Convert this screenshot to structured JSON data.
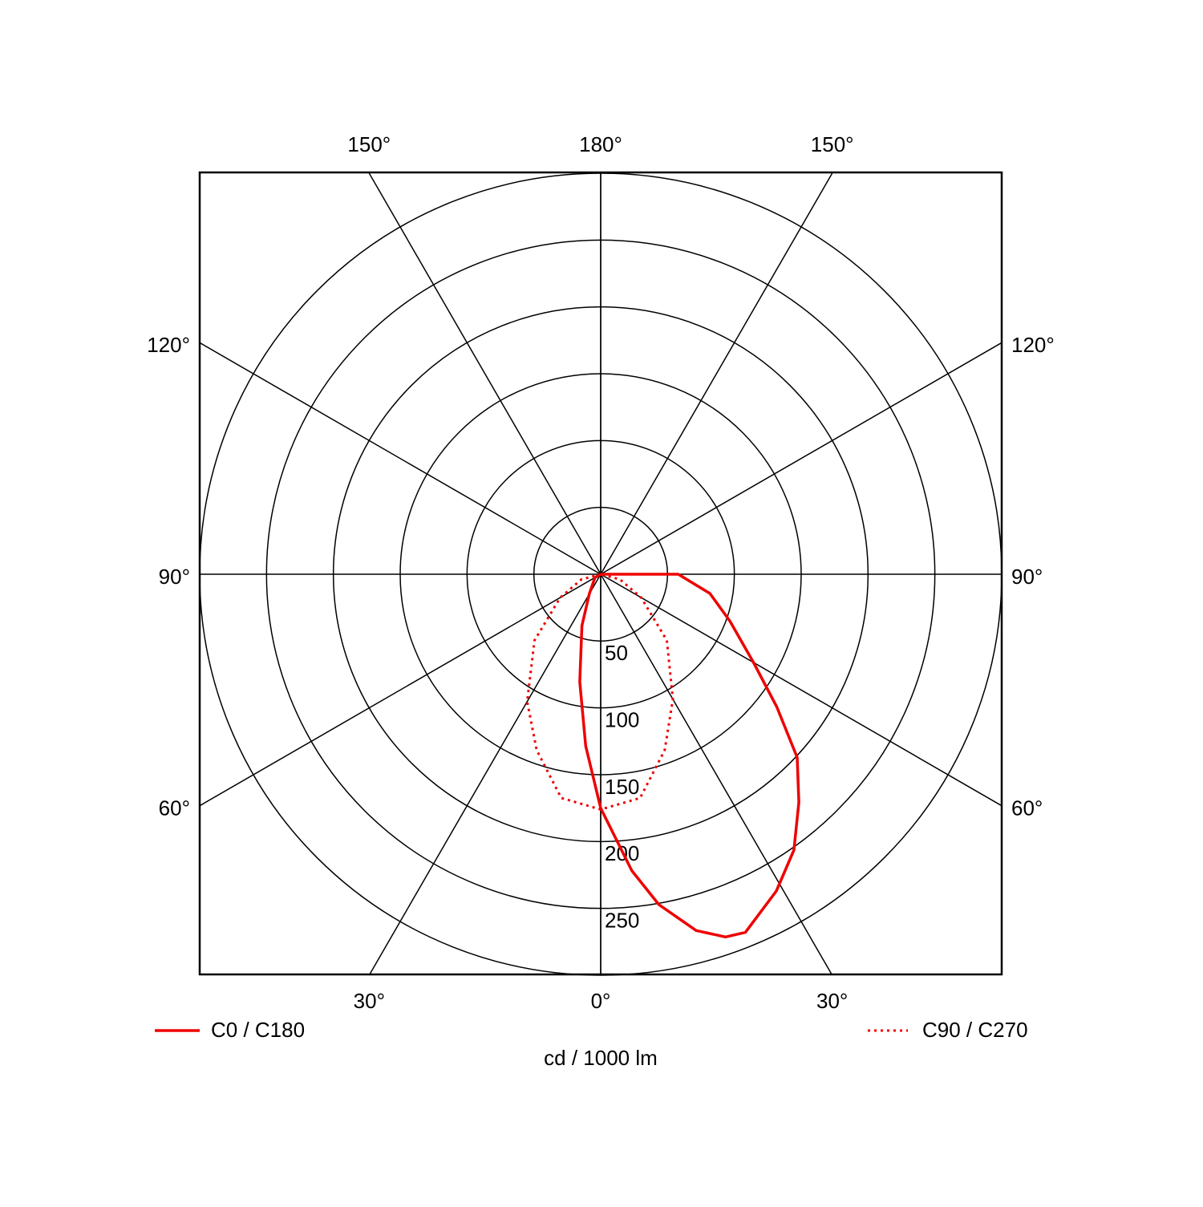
{
  "chart_data": {
    "type": "polar",
    "axis_label": "cd / 1000 lm",
    "rlim": [
      0,
      300
    ],
    "rticks": [
      50,
      100,
      150,
      200,
      250
    ],
    "thetaticks": [
      {
        "value": 0,
        "label": "0°"
      },
      {
        "value": 30,
        "label": "30°"
      },
      {
        "value": 60,
        "label": "60°"
      },
      {
        "value": 90,
        "label": "90°"
      },
      {
        "value": 120,
        "label": "120°"
      },
      {
        "value": 150,
        "label": "150°"
      },
      {
        "value": 180,
        "label": "180°"
      }
    ],
    "series": [
      {
        "name": "C0 / C180",
        "color": "#ee0000",
        "dash": "solid",
        "theta": [
          -180,
          -90,
          -60,
          -30,
          -20,
          -11,
          -5,
          0,
          6,
          10,
          15,
          19,
          22,
          29,
          35,
          41,
          47,
          53,
          60,
          70,
          80,
          90,
          180
        ],
        "values": [
          0,
          0,
          5,
          17,
          41,
          82,
          129,
          175,
          223,
          251,
          276,
          287,
          289,
          271,
          252,
          226,
          201,
          165,
          132,
          103,
          83,
          58,
          0
        ]
      },
      {
        "name": "C90 / C270",
        "color": "#ee0000",
        "dash": "dotted",
        "theta": [
          -90,
          -75,
          -60,
          -45,
          -30,
          -20,
          -10,
          0,
          10,
          20,
          30,
          45,
          60,
          75,
          90
        ],
        "values": [
          0,
          15,
          35,
          70,
          110,
          140,
          170,
          176,
          170,
          140,
          108,
          70,
          35,
          15,
          0
        ]
      }
    ]
  }
}
